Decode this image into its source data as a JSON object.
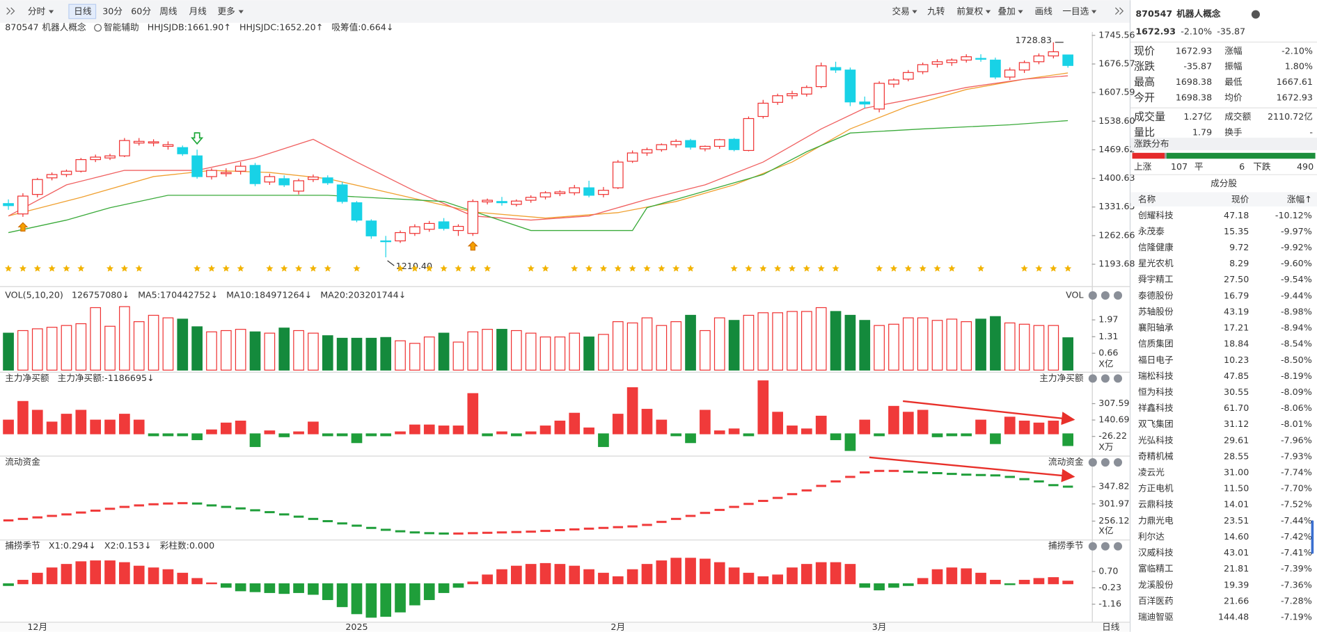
{
  "toolbar": {
    "left": [
      "分时",
      "日线",
      "30分",
      "60分",
      "周线",
      "月线",
      "更多"
    ],
    "right": [
      "交易",
      "九转",
      "前复权",
      "叠加",
      "画线",
      "一目选"
    ],
    "active": 1
  },
  "kline": {
    "type": "candlestick",
    "code": "870547",
    "name": "机器人概念",
    "indicators": [
      {
        "text": "智能辅助",
        "color": "#555555"
      },
      {
        "text": "HHJSJDB:1661.90↑",
        "color": "#e8901e"
      },
      {
        "text": "HHJSJDC:1652.20↑",
        "color": "#e83030"
      },
      {
        "text": "吸筹值:0.664↓",
        "color": "#e8901e"
      }
    ],
    "up_color": "#ef3030",
    "down_color": "#18d2e6",
    "ylim": [
      1142.7,
      1753.65
    ],
    "yticks": [
      1745.56,
      1676.57,
      1607.59,
      {
        "value": 1538.6,
        "label": "1538.60"
      },
      1469.62,
      1400.63,
      1331.65,
      1262.66,
      1193.68
    ],
    "candles": [
      [
        1340,
        1350,
        1325,
        1335
      ],
      [
        1315,
        1365,
        1308,
        1358
      ],
      [
        1362,
        1402,
        1355,
        1398
      ],
      [
        1402,
        1415,
        1396,
        1410
      ],
      [
        1410,
        1422,
        1404,
        1418
      ],
      [
        1418,
        1450,
        1415,
        1446
      ],
      [
        1446,
        1458,
        1440,
        1452
      ],
      [
        1450,
        1460,
        1445,
        1455
      ],
      [
        1455,
        1498,
        1452,
        1492
      ],
      [
        1486,
        1498,
        1480,
        1490
      ],
      [
        1486,
        1495,
        1478,
        1489
      ],
      [
        1478,
        1490,
        1470,
        1482
      ],
      [
        1475,
        1480,
        1455,
        1460
      ],
      [
        1455,
        1470,
        1400,
        1405
      ],
      [
        1405,
        1425,
        1398,
        1420
      ],
      [
        1412,
        1425,
        1405,
        1415
      ],
      [
        1418,
        1440,
        1410,
        1430
      ],
      [
        1432,
        1438,
        1382,
        1388
      ],
      [
        1392,
        1412,
        1385,
        1405
      ],
      [
        1400,
        1408,
        1380,
        1385
      ],
      [
        1370,
        1400,
        1362,
        1395
      ],
      [
        1398,
        1410,
        1392,
        1404
      ],
      [
        1402,
        1408,
        1385,
        1390
      ],
      [
        1385,
        1392,
        1340,
        1345
      ],
      [
        1342,
        1346,
        1295,
        1300
      ],
      [
        1298,
        1302,
        1255,
        1262
      ],
      [
        1250,
        1262,
        1210.4,
        1248
      ],
      [
        1250,
        1275,
        1245,
        1270
      ],
      [
        1268,
        1290,
        1262,
        1284
      ],
      [
        1278,
        1298,
        1272,
        1292
      ],
      [
        1296,
        1305,
        1275,
        1280
      ],
      [
        1275,
        1290,
        1262,
        1285
      ],
      [
        1268,
        1350,
        1262,
        1345
      ],
      [
        1344,
        1352,
        1338,
        1348
      ],
      [
        1345,
        1356,
        1335,
        1342
      ],
      [
        1338,
        1350,
        1333,
        1346
      ],
      [
        1348,
        1360,
        1342,
        1355
      ],
      [
        1356,
        1370,
        1350,
        1366
      ],
      [
        1364,
        1372,
        1358,
        1368
      ],
      [
        1366,
        1385,
        1360,
        1378
      ],
      [
        1378,
        1395,
        1355,
        1360
      ],
      [
        1362,
        1380,
        1355,
        1372
      ],
      [
        1378,
        1445,
        1375,
        1440
      ],
      [
        1442,
        1468,
        1438,
        1462
      ],
      [
        1462,
        1475,
        1455,
        1470
      ],
      [
        1470,
        1485,
        1465,
        1482
      ],
      [
        1482,
        1495,
        1475,
        1490
      ],
      [
        1492,
        1496,
        1470,
        1476
      ],
      [
        1472,
        1480,
        1466,
        1478
      ],
      [
        1478,
        1496,
        1472,
        1494
      ],
      [
        1495,
        1498,
        1466,
        1470
      ],
      [
        1468,
        1550,
        1466,
        1545
      ],
      [
        1550,
        1590,
        1545,
        1582
      ],
      [
        1584,
        1605,
        1578,
        1600
      ],
      [
        1600,
        1612,
        1592,
        1605
      ],
      [
        1604,
        1625,
        1598,
        1620
      ],
      [
        1622,
        1680,
        1618,
        1672
      ],
      [
        1668,
        1682,
        1655,
        1662
      ],
      [
        1662,
        1668,
        1575,
        1585
      ],
      [
        1585,
        1598,
        1570,
        1580
      ],
      [
        1568,
        1635,
        1560,
        1630
      ],
      [
        1628,
        1642,
        1620,
        1638
      ],
      [
        1640,
        1662,
        1635,
        1656
      ],
      [
        1658,
        1680,
        1652,
        1675
      ],
      [
        1676,
        1688,
        1668,
        1682
      ],
      [
        1680,
        1690,
        1672,
        1686
      ],
      [
        1686,
        1700,
        1680,
        1694
      ],
      [
        1690,
        1700,
        1682,
        1688
      ],
      [
        1686,
        1692,
        1640,
        1645
      ],
      [
        1645,
        1668,
        1638,
        1662
      ],
      [
        1662,
        1685,
        1655,
        1680
      ],
      [
        1682,
        1702,
        1676,
        1696
      ],
      [
        1696,
        1728.83,
        1690,
        1706
      ],
      [
        1698.38,
        1698.38,
        1667.61,
        1672.93
      ]
    ],
    "lines": [
      {
        "color": "#f0a030",
        "points": [
          [
            0,
            1310
          ],
          [
            5,
            1355
          ],
          [
            10,
            1405
          ],
          [
            14,
            1420
          ],
          [
            18,
            1415
          ],
          [
            22,
            1400
          ],
          [
            27,
            1360
          ],
          [
            32,
            1320
          ],
          [
            37,
            1305
          ],
          [
            42,
            1318
          ],
          [
            46,
            1345
          ],
          [
            50,
            1385
          ],
          [
            54,
            1440
          ],
          [
            58,
            1520
          ],
          [
            62,
            1575
          ],
          [
            66,
            1615
          ],
          [
            70,
            1640
          ],
          [
            73,
            1655
          ]
        ]
      },
      {
        "color": "#f06060",
        "points": [
          [
            0,
            1310
          ],
          [
            4,
            1385
          ],
          [
            8,
            1420
          ],
          [
            13,
            1420
          ],
          [
            17,
            1450
          ],
          [
            21,
            1495
          ],
          [
            24,
            1440
          ],
          [
            28,
            1370
          ],
          [
            32,
            1310
          ],
          [
            36,
            1300
          ],
          [
            40,
            1310
          ],
          [
            44,
            1350
          ],
          [
            48,
            1385
          ],
          [
            52,
            1440
          ],
          [
            56,
            1520
          ],
          [
            59,
            1570
          ],
          [
            62,
            1590
          ],
          [
            66,
            1620
          ],
          [
            70,
            1640
          ],
          [
            73,
            1648
          ]
        ]
      },
      {
        "color": "#3aaa3a",
        "points": [
          [
            0,
            1270
          ],
          [
            4,
            1300
          ],
          [
            7,
            1330
          ],
          [
            11,
            1360
          ],
          [
            22,
            1360
          ],
          [
            30,
            1345
          ],
          [
            36,
            1275
          ],
          [
            43,
            1275
          ],
          [
            44,
            1330
          ],
          [
            48,
            1370
          ],
          [
            52,
            1410
          ],
          [
            55,
            1465
          ],
          [
            58,
            1510
          ],
          [
            63,
            1520
          ],
          [
            69,
            1530
          ],
          [
            73,
            1540
          ]
        ]
      }
    ],
    "extremes": [
      {
        "index": 26,
        "value": 1210.4,
        "label": "1210.40",
        "side": "right"
      },
      {
        "index": 72,
        "value": 1728.83,
        "label": "1728.83",
        "side": "left"
      }
    ],
    "signal_days": [
      0,
      1,
      2,
      3,
      4,
      5,
      7,
      8,
      9,
      13,
      14,
      15,
      16,
      18,
      19,
      20,
      21,
      22,
      24,
      27,
      28,
      29,
      30,
      31,
      32,
      33,
      36,
      37,
      39,
      40,
      41,
      42,
      43,
      44,
      45,
      46,
      47,
      50,
      51,
      52,
      53,
      54,
      55,
      56,
      57,
      60,
      61,
      62,
      63,
      64,
      65,
      67,
      70,
      71,
      72,
      73
    ],
    "buy_signals": [
      1,
      32
    ],
    "sell_signals": [
      13
    ],
    "categories": [
      null,
      null,
      "12月",
      null,
      null,
      null,
      null,
      null,
      null,
      null,
      null,
      null,
      null,
      null,
      null,
      null,
      null,
      null,
      null,
      null,
      null,
      null,
      null,
      null,
      "2025",
      null,
      null,
      null,
      null,
      null,
      null,
      null,
      null,
      null,
      null,
      null,
      null,
      null,
      null,
      null,
      null,
      null,
      "2月",
      null,
      null,
      null,
      null,
      null,
      null,
      null,
      null,
      null,
      null,
      null,
      null,
      null,
      null,
      null,
      null,
      null,
      "3月",
      null,
      null,
      null,
      null,
      null,
      null,
      null,
      null,
      null,
      null,
      null,
      null,
      null
    ],
    "x_end_label": "日线"
  },
  "volume": {
    "type": "bar",
    "title": "VOL(5,10,20)",
    "right_title": "VOL",
    "color_by": "candles",
    "legend": [
      {
        "text": "126757080↓",
        "color": "#333333"
      },
      {
        "text": "MA5:170442752↓",
        "color": "#e8a020"
      },
      {
        "text": "MA10:184971264↓",
        "color": "#e030d0"
      },
      {
        "text": "MA20:203201744↓",
        "color": "#2a9a3a"
      }
    ],
    "up_color": "#ef3030",
    "down_color": "#148a3c",
    "ylim": [
      0,
      3.06
    ],
    "yticks": [
      1.97,
      1.31,
      0.66
    ],
    "unit": "X亿",
    "values": [
      1.45,
      1.55,
      1.62,
      1.68,
      1.75,
      1.82,
      2.45,
      1.72,
      2.49,
      1.9,
      2.15,
      2.05,
      2.0,
      1.7,
      1.5,
      1.55,
      1.6,
      1.5,
      1.45,
      1.65,
      1.55,
      1.45,
      1.35,
      1.25,
      1.25,
      1.25,
      1.28,
      1.15,
      1.05,
      1.3,
      1.45,
      1.1,
      1.5,
      1.6,
      1.6,
      1.55,
      1.45,
      1.3,
      1.3,
      1.45,
      1.3,
      1.4,
      1.9,
      1.85,
      2.05,
      1.75,
      1.9,
      2.15,
      1.55,
      2.05,
      1.95,
      2.15,
      2.25,
      2.25,
      2.3,
      2.3,
      2.45,
      2.3,
      2.15,
      1.95,
      1.75,
      1.8,
      2.05,
      2.05,
      1.95,
      2.0,
      1.9,
      2.0,
      2.1,
      1.85,
      1.8,
      1.75,
      1.75,
      1.27
    ]
  },
  "net_buy": {
    "type": "bar",
    "title": "主力净买额",
    "right_title": "主力净买额",
    "legend": [
      {
        "text": "主力净买额:-1186695↓",
        "color": "#2a8a3a"
      }
    ],
    "up_color": "#f03a3a",
    "down_color": "#1f9e3a",
    "ylim": [
      -197,
      555
    ],
    "yticks": [
      307.59,
      140.69,
      -26.22
    ],
    "unit": "X万",
    "values": [
      140,
      330,
      240,
      120,
      200,
      240,
      140,
      140,
      200,
      140,
      -20,
      -20,
      -20,
      -60,
      40,
      110,
      130,
      -130,
      30,
      -30,
      20,
      120,
      -20,
      -20,
      -90,
      -20,
      -20,
      20,
      90,
      90,
      80,
      80,
      410,
      -20,
      20,
      -20,
      20,
      80,
      130,
      210,
      60,
      -130,
      200,
      470,
      250,
      140,
      -20,
      -90,
      240,
      30,
      50,
      -20,
      540,
      220,
      80,
      50,
      180,
      -60,
      -170,
      140,
      -20,
      280,
      220,
      240,
      -30,
      -20,
      -20,
      140,
      -100,
      170,
      130,
      110,
      130,
      -120
    ]
  },
  "liquidity": {
    "type": "step",
    "title": "流动资金",
    "right_title": "流动资金",
    "legend": [],
    "up_color": "#f03a3a",
    "down_color": "#1f9e3a",
    "ylim": [
      213.6,
      419.4
    ],
    "yticks": [
      347.82,
      301.97,
      256.12
    ],
    "unit": "X亿",
    "values": [
      258,
      262,
      266,
      270,
      274,
      279,
      284,
      289,
      294,
      298,
      301,
      303,
      304,
      303,
      298,
      294,
      290,
      285,
      280,
      274,
      268,
      262,
      256,
      250,
      244,
      238,
      233,
      229,
      226,
      224,
      223,
      223,
      224,
      225,
      226,
      227,
      228,
      230,
      232,
      234,
      236,
      238,
      240,
      242,
      246,
      254,
      262,
      270,
      278,
      286,
      294,
      302,
      310,
      318,
      328,
      338,
      350,
      362,
      374,
      386,
      390,
      390,
      388,
      386,
      384,
      382,
      380,
      379,
      378,
      374,
      368,
      362,
      352,
      348
    ]
  },
  "season": {
    "type": "bar",
    "title": "捕捞季节",
    "right_title": "捕捞季节",
    "legend": [
      {
        "text": "X1:0.294↓",
        "color": "#e8a020"
      },
      {
        "text": "X2:0.153↓",
        "color": "#e030e0"
      },
      {
        "text": "彩柱数:0.000",
        "color": "#2a8a3a"
      }
    ],
    "up_color": "#f03a3a",
    "down_color": "#1f9e3a",
    "ylim": [
      -2.11,
      2.27
    ],
    "yticks": [
      {
        "value": 0.7,
        "label": "0.70"
      },
      -0.23,
      -1.16
    ],
    "values": [
      -0.1,
      0.2,
      0.6,
      0.9,
      1.1,
      1.25,
      1.3,
      1.3,
      1.2,
      1.0,
      0.9,
      0.8,
      0.6,
      0.3,
      0.05,
      -0.2,
      -0.4,
      -0.45,
      -0.5,
      -0.55,
      -0.5,
      -0.6,
      -0.9,
      -1.3,
      -1.7,
      -1.9,
      -1.85,
      -1.6,
      -1.2,
      -0.9,
      -0.5,
      -0.2,
      0.1,
      0.5,
      0.8,
      1.0,
      1.1,
      1.15,
      1.1,
      1.0,
      0.8,
      0.6,
      0.4,
      0.8,
      1.1,
      1.3,
      1.45,
      1.45,
      1.4,
      1.2,
      0.9,
      0.6,
      0.4,
      0.5,
      0.9,
      1.1,
      1.2,
      1.2,
      1.1,
      -0.2,
      -0.35,
      -0.2,
      -0.1,
      0.3,
      0.8,
      0.9,
      0.85,
      0.6,
      0.2,
      -0.05,
      0.2,
      0.3,
      0.35,
      0.15
    ]
  },
  "quote": {
    "code": "870547",
    "name": "机器人概念",
    "price": "1672.93",
    "pct": "-2.10%",
    "chg": "-35.87",
    "stats": [
      [
        "现价",
        "1672.93",
        "涨幅",
        "-2.10%"
      ],
      [
        "涨跌",
        "-35.87",
        "振幅",
        "1.80%"
      ],
      [
        "最高",
        "1698.38",
        "最低",
        "1667.61"
      ],
      [
        "今开",
        "1698.38",
        "均价",
        "1672.93"
      ],
      [
        "成交量",
        "1.27亿",
        "成交额",
        "2110.72亿"
      ],
      [
        "量比",
        "1.79",
        "换手",
        "-"
      ]
    ],
    "dist_title": "涨跌分布",
    "up_label": "上涨",
    "up": 107,
    "flat_label": "平",
    "flat": 6,
    "down_label": "下跌",
    "down": 490,
    "list_title": "成分股",
    "columns": [
      "名称",
      "现价",
      "涨幅↑"
    ],
    "stocks": [
      [
        "创耀科技",
        "47.18",
        "-10.12%"
      ],
      [
        "永茂泰",
        "15.35",
        "-9.97%"
      ],
      [
        "信隆健康",
        "9.72",
        "-9.92%"
      ],
      [
        "星光农机",
        "8.29",
        "-9.60%"
      ],
      [
        "舜宇精工",
        "27.50",
        "-9.54%"
      ],
      [
        "泰德股份",
        "16.79",
        "-9.44%"
      ],
      [
        "苏轴股份",
        "43.19",
        "-8.98%"
      ],
      [
        "襄阳轴承",
        "17.21",
        "-8.94%"
      ],
      [
        "信质集团",
        "18.84",
        "-8.54%"
      ],
      [
        "福日电子",
        "10.23",
        "-8.50%"
      ],
      [
        "瑞松科技",
        "47.85",
        "-8.19%"
      ],
      [
        "恒为科技",
        "30.55",
        "-8.09%"
      ],
      [
        "祥鑫科技",
        "61.70",
        "-8.06%"
      ],
      [
        "双飞集团",
        "31.12",
        "-8.01%"
      ],
      [
        "光弘科技",
        "29.61",
        "-7.96%"
      ],
      [
        "奇精机械",
        "28.55",
        "-7.93%"
      ],
      [
        "凌云光",
        "31.00",
        "-7.74%"
      ],
      [
        "方正电机",
        "11.50",
        "-7.70%"
      ],
      [
        "云鼎科技",
        "14.01",
        "-7.52%"
      ],
      [
        "力鼎光电",
        "23.51",
        "-7.44%"
      ],
      [
        "利尔达",
        "14.60",
        "-7.42%"
      ],
      [
        "汉威科技",
        "43.01",
        "-7.41%"
      ],
      [
        "富临精工",
        "21.81",
        "-7.39%"
      ],
      [
        "龙溪股份",
        "19.39",
        "-7.36%"
      ],
      [
        "百洋医药",
        "21.66",
        "-7.28%"
      ],
      [
        "瑞迪智驱",
        "144.48",
        "-7.19%"
      ]
    ],
    "linked": [
      7,
      8,
      12,
      13,
      15,
      17,
      22,
      23
    ]
  }
}
